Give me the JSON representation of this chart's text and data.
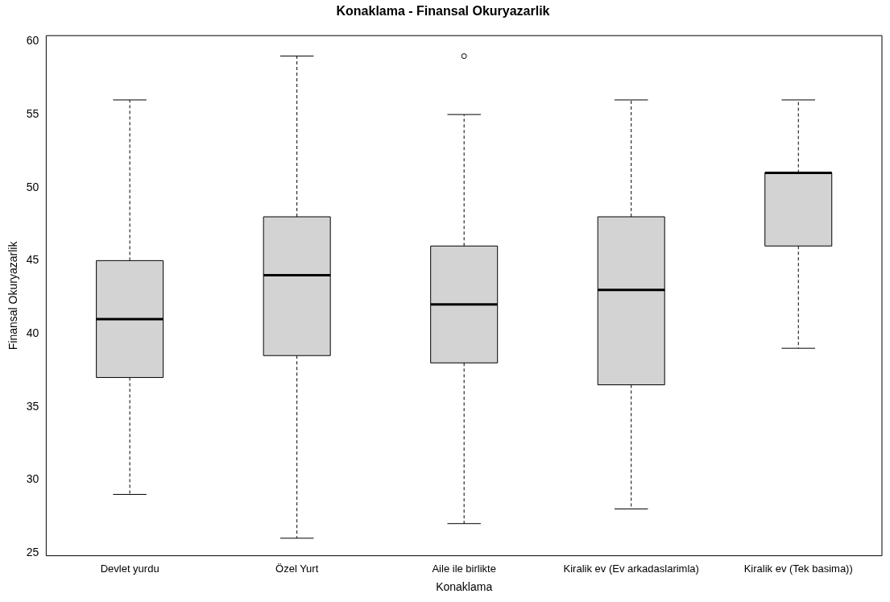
{
  "chart_data": {
    "type": "box",
    "title": "Konaklama - Finansal Okuryazarlik",
    "xlabel": "Konaklama",
    "ylabel": "Finansal Okuryazarlik",
    "categories": [
      "Devlet yurdu",
      "Özel Yurt",
      "Aile ile birlikte",
      "Kiralik ev (Ev arkadaslarimla)",
      "Kiralik ev (Tek basima))"
    ],
    "color": "#d3d3d3",
    "boxes": [
      {
        "low": 29,
        "q1": 37,
        "median": 41,
        "q3": 45,
        "high": 56
      },
      {
        "low": 26,
        "q1": 38.5,
        "median": 44,
        "q3": 48,
        "high": 59
      },
      {
        "low": 27,
        "q1": 38,
        "median": 42,
        "q3": 46,
        "high": 55,
        "outliers": [
          59
        ]
      },
      {
        "low": 28,
        "q1": 36.5,
        "median": 43,
        "q3": 48,
        "high": 56
      },
      {
        "low": 39,
        "q1": 46,
        "median": 51,
        "q3": 51,
        "high": 56
      }
    ],
    "ylim": [
      24.8,
      60.4
    ],
    "yticks": [
      25,
      30,
      35,
      40,
      45,
      50,
      55,
      60
    ],
    "grid": false,
    "legend": false
  }
}
